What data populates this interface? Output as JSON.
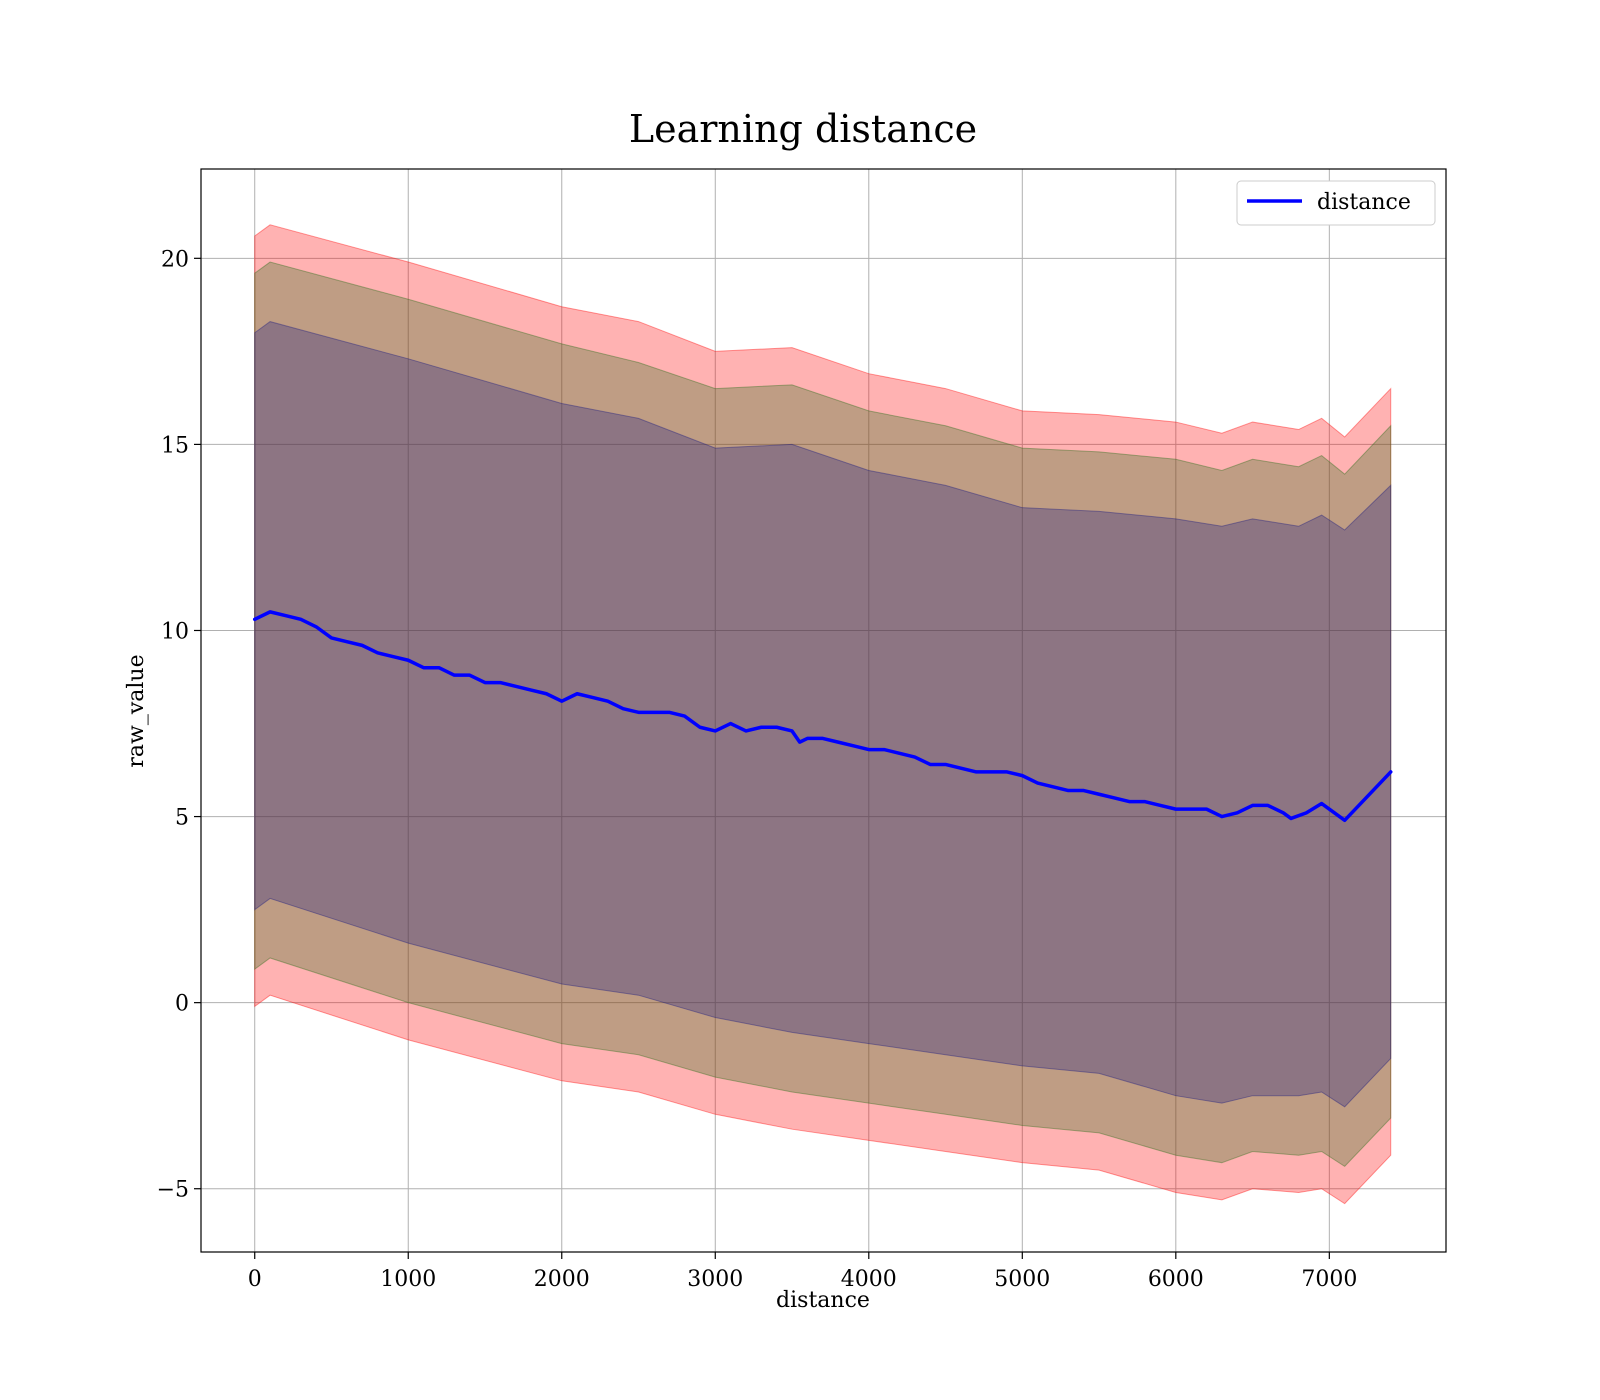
{
  "chart_data": {
    "type": "line",
    "title": "Learning distance",
    "xlabel": "distance",
    "ylabel": "raw_value",
    "xlim": [
      -350,
      7760
    ],
    "ylim": [
      -6.7,
      22.4
    ],
    "xticks": [
      0,
      1000,
      2000,
      3000,
      4000,
      5000,
      6000,
      7000
    ],
    "xtick_labels": [
      "0",
      "1000",
      "2000",
      "3000",
      "4000",
      "5000",
      "6000",
      "7000"
    ],
    "yticks": [
      -5,
      0,
      5,
      10,
      15,
      20
    ],
    "ytick_labels": [
      "−5",
      "0",
      "5",
      "10",
      "15",
      "20"
    ],
    "grid": true,
    "legend_position": "top-right",
    "series": [
      {
        "name": "distance",
        "color": "#0000ff",
        "x": [
          0,
          100,
          200,
          300,
          400,
          500,
          600,
          700,
          800,
          900,
          1000,
          1100,
          1200,
          1300,
          1400,
          1500,
          1600,
          1700,
          1800,
          1900,
          2000,
          2100,
          2200,
          2300,
          2400,
          2500,
          2600,
          2700,
          2800,
          2900,
          3000,
          3100,
          3200,
          3300,
          3400,
          3500,
          3550,
          3600,
          3700,
          3800,
          3900,
          4000,
          4100,
          4200,
          4300,
          4400,
          4500,
          4600,
          4700,
          4800,
          4900,
          5000,
          5100,
          5200,
          5300,
          5400,
          5500,
          5600,
          5700,
          5800,
          5900,
          6000,
          6100,
          6200,
          6300,
          6400,
          6500,
          6600,
          6700,
          6750,
          6850,
          6950,
          7100,
          7400
        ],
        "y": [
          10.3,
          10.5,
          10.4,
          10.3,
          10.1,
          9.8,
          9.7,
          9.6,
          9.4,
          9.3,
          9.2,
          9.0,
          9.0,
          8.8,
          8.8,
          8.6,
          8.6,
          8.5,
          8.4,
          8.3,
          8.1,
          8.3,
          8.2,
          8.1,
          7.9,
          7.8,
          7.8,
          7.8,
          7.7,
          7.4,
          7.3,
          7.5,
          7.3,
          7.4,
          7.4,
          7.3,
          7.0,
          7.1,
          7.1,
          7.0,
          6.9,
          6.8,
          6.8,
          6.7,
          6.6,
          6.4,
          6.4,
          6.3,
          6.2,
          6.2,
          6.2,
          6.1,
          5.9,
          5.8,
          5.7,
          5.7,
          5.6,
          5.5,
          5.4,
          5.4,
          5.3,
          5.2,
          5.2,
          5.2,
          5.0,
          5.1,
          5.3,
          5.3,
          5.1,
          4.95,
          5.1,
          5.35,
          4.9,
          6.2
        ]
      }
    ],
    "bands": [
      {
        "color": "#ff0000",
        "opacity": 0.3,
        "x": [
          0,
          100,
          1000,
          2000,
          2500,
          3000,
          3500,
          4000,
          4500,
          5000,
          5500,
          6000,
          6300,
          6500,
          6800,
          6950,
          7100,
          7400
        ],
        "upper": [
          20.6,
          20.9,
          19.9,
          18.7,
          18.3,
          17.5,
          17.6,
          16.9,
          16.5,
          15.9,
          15.8,
          15.6,
          15.3,
          15.6,
          15.4,
          15.7,
          15.2,
          16.5
        ],
        "lower": [
          -0.1,
          0.2,
          -1.0,
          -2.1,
          -2.4,
          -3.0,
          -3.4,
          -3.7,
          -4.0,
          -4.3,
          -4.5,
          -5.1,
          -5.3,
          -5.0,
          -5.1,
          -5.0,
          -5.4,
          -4.1
        ]
      },
      {
        "color": "#2a6e1a",
        "opacity": 0.3,
        "x": [
          0,
          100,
          1000,
          2000,
          2500,
          3000,
          3500,
          4000,
          4500,
          5000,
          5500,
          6000,
          6300,
          6500,
          6800,
          6950,
          7100,
          7400
        ],
        "upper": [
          19.6,
          19.9,
          18.9,
          17.7,
          17.2,
          16.5,
          16.6,
          15.9,
          15.5,
          14.9,
          14.8,
          14.6,
          14.3,
          14.6,
          14.4,
          14.7,
          14.2,
          15.5
        ],
        "lower": [
          0.9,
          1.2,
          0.0,
          -1.1,
          -1.4,
          -2.0,
          -2.4,
          -2.7,
          -3.0,
          -3.3,
          -3.5,
          -4.1,
          -4.3,
          -4.0,
          -4.1,
          -4.0,
          -4.4,
          -3.1
        ]
      },
      {
        "color": "#1a1a80",
        "opacity": 0.3,
        "x": [
          0,
          100,
          1000,
          2000,
          2500,
          3000,
          3500,
          4000,
          4500,
          5000,
          5500,
          6000,
          6300,
          6500,
          6800,
          6950,
          7100,
          7400
        ],
        "upper": [
          18.0,
          18.3,
          17.3,
          16.1,
          15.7,
          14.9,
          15.0,
          14.3,
          13.9,
          13.3,
          13.2,
          13.0,
          12.8,
          13.0,
          12.8,
          13.1,
          12.7,
          13.9
        ],
        "lower": [
          2.5,
          2.8,
          1.6,
          0.5,
          0.2,
          -0.4,
          -0.8,
          -1.1,
          -1.4,
          -1.7,
          -1.9,
          -2.5,
          -2.7,
          -2.5,
          -2.5,
          -2.4,
          -2.8,
          -1.5
        ]
      }
    ]
  }
}
